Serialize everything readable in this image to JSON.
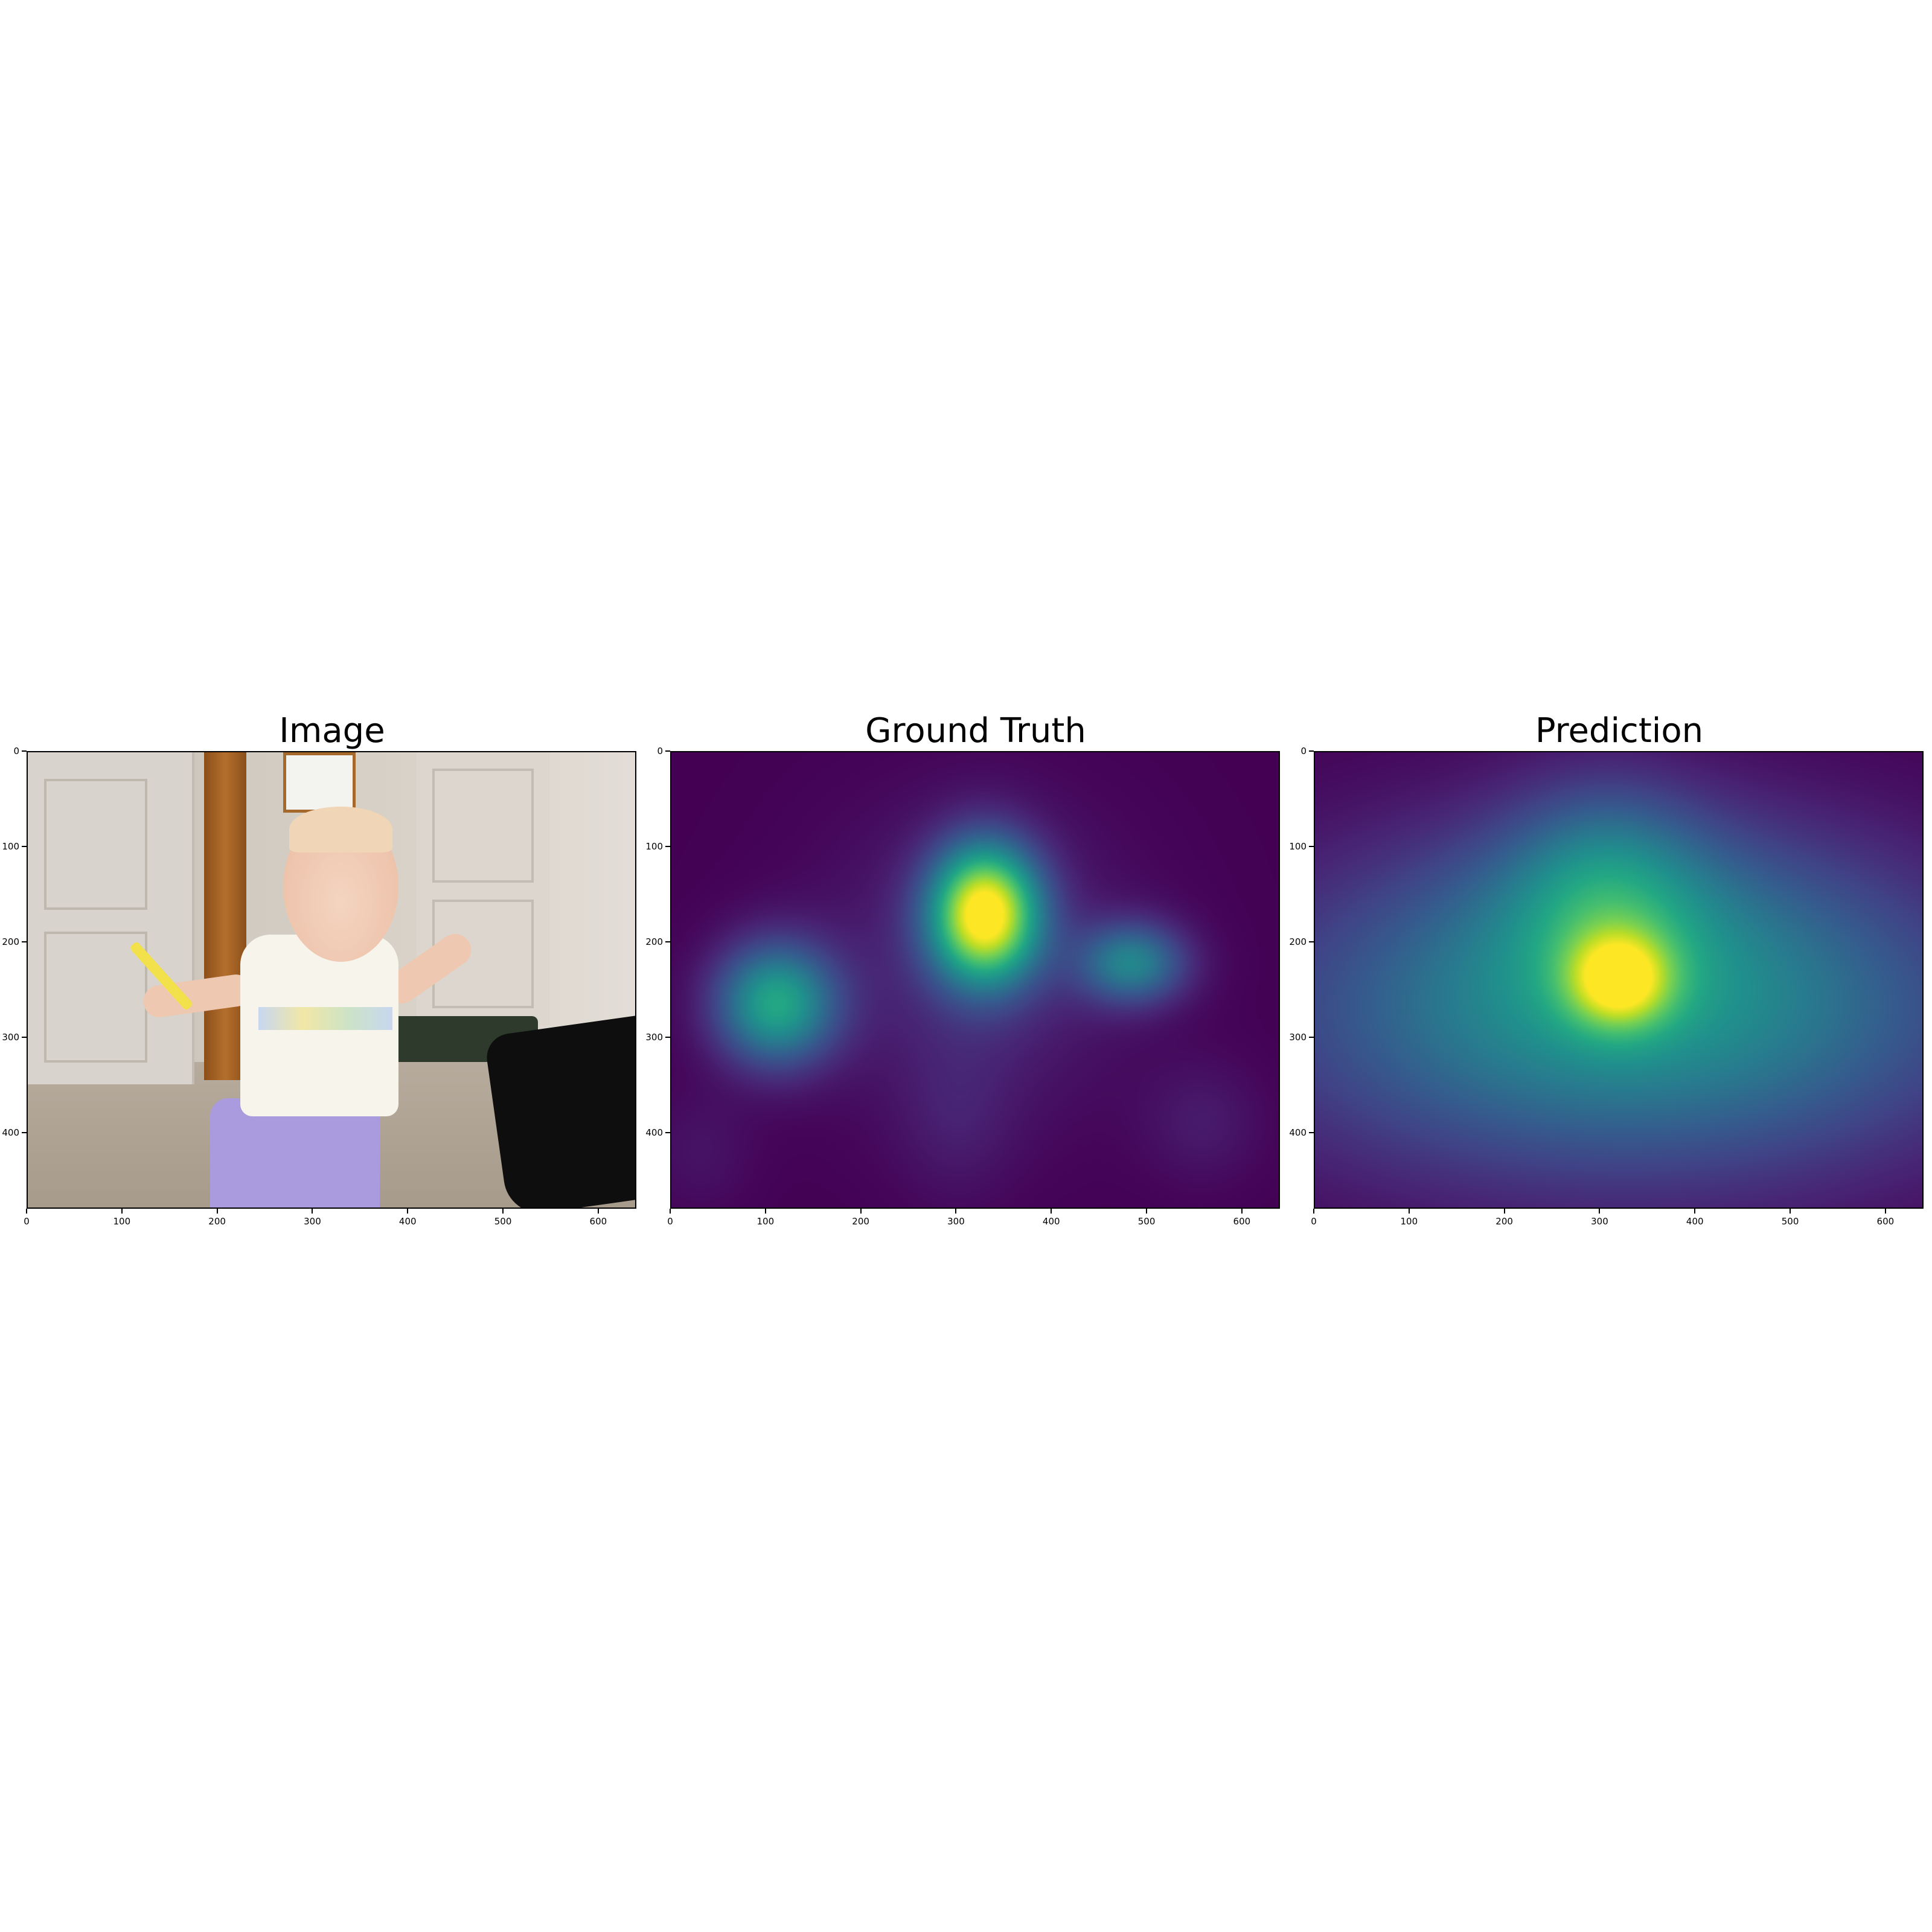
{
  "chart_data": [
    {
      "type": "image",
      "title": "Image",
      "xlim": [
        0,
        640
      ],
      "ylim": [
        480,
        0
      ],
      "x_ticks": [
        "0",
        "100",
        "200",
        "300",
        "400",
        "500",
        "600"
      ],
      "y_ticks": [
        "0",
        "100",
        "200",
        "300",
        "400"
      ]
    },
    {
      "type": "heatmap",
      "title": "Ground Truth",
      "colormap": "viridis",
      "xlim": [
        0,
        640
      ],
      "ylim": [
        480,
        0
      ],
      "x_ticks": [
        "0",
        "100",
        "200",
        "300",
        "400",
        "500",
        "600"
      ],
      "y_ticks": [
        "0",
        "100",
        "200",
        "300",
        "400"
      ],
      "blobs": [
        {
          "x": 330,
          "y": 170,
          "sx": 40,
          "sy": 50,
          "value": 1.0
        },
        {
          "x": 110,
          "y": 265,
          "sx": 45,
          "sy": 45,
          "value": 0.58
        },
        {
          "x": 485,
          "y": 222,
          "sx": 40,
          "sy": 30,
          "value": 0.42
        },
        {
          "x": 320,
          "y": 220,
          "sx": 110,
          "sy": 110,
          "value": 0.12
        },
        {
          "x": 560,
          "y": 390,
          "sx": 45,
          "sy": 45,
          "value": 0.07
        },
        {
          "x": 300,
          "y": 390,
          "sx": 45,
          "sy": 60,
          "value": 0.06
        },
        {
          "x": 30,
          "y": 420,
          "sx": 40,
          "sy": 45,
          "value": 0.05
        }
      ]
    },
    {
      "type": "heatmap",
      "title": "Prediction",
      "colormap": "viridis",
      "xlim": [
        0,
        640
      ],
      "ylim": [
        480,
        0
      ],
      "x_ticks": [
        "0",
        "100",
        "200",
        "300",
        "400",
        "500",
        "600"
      ],
      "y_ticks": [
        "0",
        "100",
        "200",
        "300",
        "400"
      ],
      "blobs": [
        {
          "x": 320,
          "y": 240,
          "sx": 38,
          "sy": 35,
          "value": 0.55
        },
        {
          "x": 305,
          "y": 140,
          "sx": 70,
          "sy": 75,
          "value": 0.25
        },
        {
          "x": 330,
          "y": 275,
          "sx": 260,
          "sy": 120,
          "value": 0.5
        },
        {
          "x": 330,
          "y": 160,
          "sx": 150,
          "sy": 80,
          "value": 0.12
        }
      ]
    }
  ]
}
